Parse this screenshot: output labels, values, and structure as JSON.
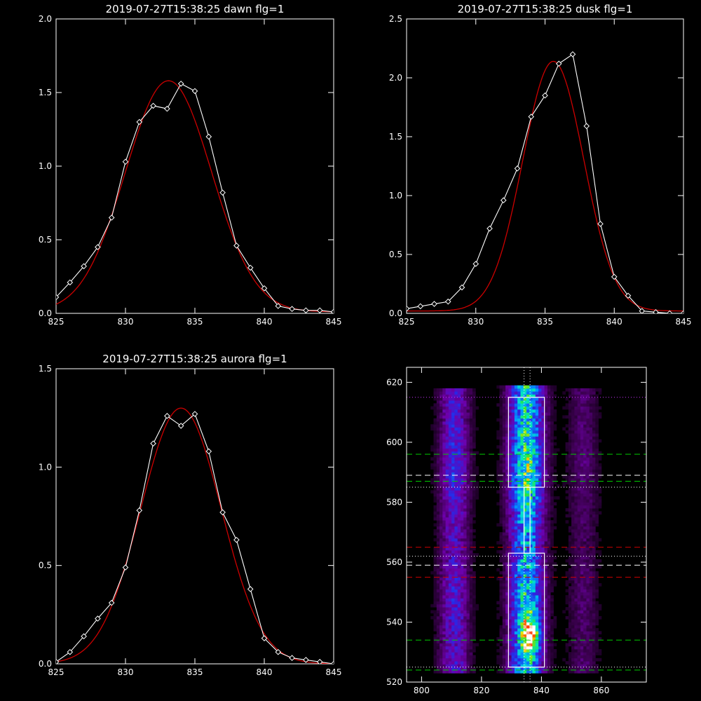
{
  "chart_data": [
    {
      "id": "dawn",
      "type": "line",
      "title": "2019-07-27T15:38:25 dawn flg=1",
      "xlim": [
        825,
        845
      ],
      "ylim": [
        0,
        2.0
      ],
      "xticks": [
        825,
        830,
        835,
        840,
        845
      ],
      "xtick_labels": [
        "825",
        "830",
        "835",
        "840",
        "845"
      ],
      "yticks": [
        0,
        0.5,
        1.0,
        1.5,
        2.0
      ],
      "ytick_labels": [
        "0.0",
        "0.5",
        "1.0",
        "1.5",
        "2.0"
      ],
      "series": [
        {
          "style": "data",
          "color": "#ffffff",
          "marker": "diamond",
          "x": [
            825,
            826,
            827,
            828,
            829,
            830,
            831,
            832,
            833,
            834,
            835,
            836,
            837,
            838,
            839,
            840,
            841,
            842,
            843,
            844,
            845
          ],
          "y": [
            0.11,
            0.21,
            0.32,
            0.45,
            0.65,
            1.03,
            1.3,
            1.41,
            1.39,
            1.56,
            1.51,
            1.2,
            0.82,
            0.46,
            0.31,
            0.17,
            0.05,
            0.03,
            0.02,
            0.02,
            0.01
          ]
        },
        {
          "style": "fit",
          "color": "#cc0000",
          "shape": "gaussian",
          "center": 833.1,
          "amplitude": 1.57,
          "sigma": 3.1,
          "offset": 0.01
        }
      ]
    },
    {
      "id": "dusk",
      "type": "line",
      "title": "2019-07-27T15:38:25 dusk flg=1",
      "xlim": [
        825,
        845
      ],
      "ylim": [
        0,
        2.5
      ],
      "xticks": [
        825,
        830,
        835,
        840,
        845
      ],
      "xtick_labels": [
        "825",
        "830",
        "835",
        "840",
        "845"
      ],
      "yticks": [
        0,
        0.5,
        1.0,
        1.5,
        2.0,
        2.5
      ],
      "ytick_labels": [
        "0.0",
        "0.5",
        "1.0",
        "1.5",
        "2.0",
        "2.5"
      ],
      "series": [
        {
          "style": "data",
          "color": "#ffffff",
          "marker": "diamond",
          "x": [
            825,
            826,
            827,
            828,
            829,
            830,
            831,
            832,
            833,
            834,
            835,
            836,
            837,
            838,
            839,
            840,
            841,
            842,
            843,
            844,
            845
          ],
          "y": [
            0.04,
            0.06,
            0.08,
            0.1,
            0.22,
            0.42,
            0.72,
            0.96,
            1.23,
            1.67,
            1.85,
            2.12,
            2.2,
            1.59,
            0.76,
            0.31,
            0.15,
            0.02,
            0.01,
            0.0,
            0.0
          ]
        },
        {
          "style": "fit",
          "color": "#cc0000",
          "shape": "gaussian",
          "center": 835.6,
          "amplitude": 2.12,
          "sigma": 2.2,
          "offset": 0.02
        }
      ]
    },
    {
      "id": "aurora",
      "type": "line",
      "title": "2019-07-27T15:38:25 aurora flg=1",
      "xlim": [
        825,
        845
      ],
      "ylim": [
        0,
        1.5
      ],
      "xticks": [
        825,
        830,
        835,
        840,
        845
      ],
      "xtick_labels": [
        "825",
        "830",
        "835",
        "840",
        "845"
      ],
      "yticks": [
        0,
        0.5,
        1.0,
        1.5
      ],
      "ytick_labels": [
        "0.0",
        "0.5",
        "1.0",
        "1.5"
      ],
      "series": [
        {
          "style": "data",
          "color": "#ffffff",
          "marker": "diamond",
          "x": [
            825,
            826,
            827,
            828,
            829,
            830,
            831,
            832,
            833,
            834,
            835,
            836,
            837,
            838,
            839,
            840,
            841,
            842,
            843,
            844,
            845
          ],
          "y": [
            0.01,
            0.06,
            0.14,
            0.23,
            0.31,
            0.49,
            0.78,
            1.12,
            1.26,
            1.21,
            1.27,
            1.08,
            0.77,
            0.63,
            0.38,
            0.13,
            0.06,
            0.03,
            0.02,
            0.01,
            0.0
          ]
        },
        {
          "style": "fit",
          "color": "#cc0000",
          "shape": "gaussian",
          "center": 834.0,
          "amplitude": 1.3,
          "sigma": 2.9,
          "offset": 0.0
        }
      ]
    },
    {
      "id": "image",
      "type": "heatmap",
      "title": "",
      "xlim": [
        795,
        875
      ],
      "ylim": [
        520,
        625
      ],
      "xticks": [
        800,
        820,
        840,
        860
      ],
      "xtick_labels": [
        "800",
        "820",
        "840",
        "860"
      ],
      "yticks": [
        520,
        540,
        560,
        580,
        600,
        620
      ],
      "ytick_labels": [
        "520",
        "540",
        "560",
        "580",
        "600",
        "620"
      ],
      "bands": [
        {
          "x_center": 811,
          "x_width": 3.5,
          "y_min": 523,
          "y_max": 617,
          "intensity": 0.45
        },
        {
          "x_center": 835,
          "x_width": 4.0,
          "y_min": 523,
          "y_max": 618,
          "intensity": 0.9
        },
        {
          "x_center": 854,
          "x_width": 3.5,
          "y_min": 523,
          "y_max": 617,
          "intensity": 0.2
        }
      ],
      "hotspot": {
        "x": 836,
        "y": 535
      },
      "boxes": [
        {
          "x": [
            829,
            841
          ],
          "y": [
            525,
            563
          ],
          "color": "#ffffff"
        },
        {
          "x": [
            829,
            841
          ],
          "y": [
            585,
            615
          ],
          "color": "#ffffff"
        },
        {
          "x": [
            834.2,
            836.2
          ],
          "y": [
            563,
            585
          ],
          "color": "#ffffff"
        }
      ],
      "hlines": [
        {
          "y": 615,
          "color": "#cc33ff",
          "dash": "dotted"
        },
        {
          "y": 596,
          "color": "#00cc00",
          "dash": "dashed"
        },
        {
          "y": 589,
          "color": "#ffffff",
          "dash": "dashed"
        },
        {
          "y": 587,
          "color": "#00cc00",
          "dash": "dashed"
        },
        {
          "y": 585,
          "color": "#ffffff",
          "dash": "dotted"
        },
        {
          "y": 565,
          "color": "#cc0000",
          "dash": "dashed"
        },
        {
          "y": 562,
          "color": "#ffffff",
          "dash": "dotted"
        },
        {
          "y": 559,
          "color": "#ffffff",
          "dash": "dashed"
        },
        {
          "y": 555,
          "color": "#cc0000",
          "dash": "dashed"
        },
        {
          "y": 534,
          "color": "#00cc00",
          "dash": "dashed"
        },
        {
          "y": 525,
          "color": "#ffffff",
          "dash": "dotted"
        },
        {
          "y": 524,
          "color": "#00cc00",
          "dash": "dashed"
        }
      ],
      "vlines": [
        {
          "x": 834.2,
          "color": "#ffffff",
          "dash": "dotted"
        },
        {
          "x": 836.2,
          "color": "#ffffff",
          "dash": "dotted"
        }
      ]
    }
  ]
}
